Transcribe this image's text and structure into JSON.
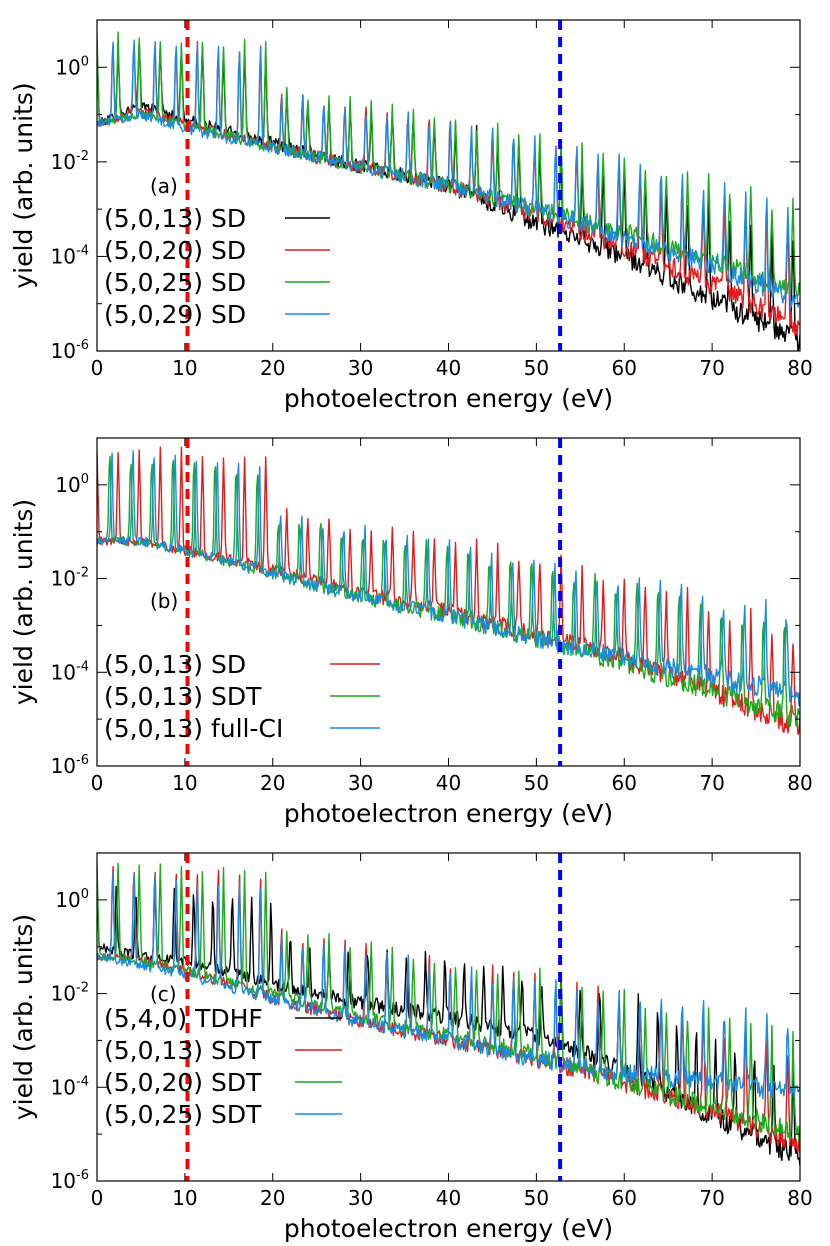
{
  "chart_data": [
    {
      "type": "line",
      "panel_label": "(a)",
      "xlabel": "photoelectron energy (eV)",
      "ylabel": "yield (arb. units)",
      "xlim": [
        0,
        80
      ],
      "ylim_log10": [
        -6,
        1
      ],
      "y_scale": "log",
      "x_ticks": [
        "0",
        "10",
        "20",
        "30",
        "40",
        "50",
        "60",
        "70",
        "80"
      ],
      "y_ticks": [
        {
          "base": "10",
          "exp": "0"
        },
        {
          "base": "10",
          "exp": "-2"
        },
        {
          "base": "10",
          "exp": "-4"
        },
        {
          "base": "10",
          "exp": "-6"
        }
      ],
      "vertical_lines": [
        {
          "x": 10.3,
          "color": "#ff0000"
        },
        {
          "x": 52.7,
          "color": "#0000ff"
        }
      ],
      "legend_position": "bottom-left",
      "series": [
        {
          "name": "(5,0,13) SD",
          "color": "#000000",
          "x": [
            0,
            5,
            10,
            20,
            30,
            40,
            50,
            60,
            70,
            80
          ],
          "y_log10_baseline": [
            -1.2,
            -0.8,
            -1.1,
            -1.6,
            -2.1,
            -2.5,
            -3.3,
            -4.0,
            -4.9,
            -5.8
          ],
          "peak_log10": 0.5,
          "peak_spacing_ev": 2.4
        },
        {
          "name": "(5,0,20) SD",
          "color": "#e41a1c",
          "x": [
            0,
            5,
            10,
            20,
            30,
            40,
            50,
            60,
            70,
            80
          ],
          "y_log10_baseline": [
            -1.2,
            -0.9,
            -1.2,
            -1.7,
            -2.1,
            -2.5,
            -3.1,
            -3.8,
            -4.6,
            -5.5
          ],
          "peak_log10": 0.6,
          "peak_spacing_ev": 2.4
        },
        {
          "name": "(5,0,25) SD",
          "color": "#1aaa1a",
          "x": [
            0,
            5,
            10,
            20,
            30,
            40,
            50,
            60,
            70,
            80
          ],
          "y_log10_baseline": [
            -1.2,
            -1.0,
            -1.2,
            -1.7,
            -2.1,
            -2.5,
            -3.0,
            -3.5,
            -4.1,
            -4.8
          ],
          "peak_log10": 0.7,
          "peak_spacing_ev": 2.4
        },
        {
          "name": "(5,0,29) SD",
          "color": "#1a8ce0",
          "x": [
            0,
            5,
            10,
            20,
            30,
            40,
            50,
            60,
            70,
            80
          ],
          "y_log10_baseline": [
            -1.2,
            -1.0,
            -1.3,
            -1.7,
            -2.1,
            -2.5,
            -3.0,
            -3.6,
            -4.2,
            -4.9
          ],
          "peak_log10": 0.6,
          "peak_spacing_ev": 2.4
        }
      ]
    },
    {
      "type": "line",
      "panel_label": "(b)",
      "xlabel": "photoelectron energy (eV)",
      "ylabel": "yield (arb. units)",
      "xlim": [
        0,
        80
      ],
      "ylim_log10": [
        -6,
        1
      ],
      "y_scale": "log",
      "x_ticks": [
        "0",
        "10",
        "20",
        "30",
        "40",
        "50",
        "60",
        "70",
        "80"
      ],
      "y_ticks": [
        {
          "base": "10",
          "exp": "0"
        },
        {
          "base": "10",
          "exp": "-2"
        },
        {
          "base": "10",
          "exp": "-4"
        },
        {
          "base": "10",
          "exp": "-6"
        }
      ],
      "vertical_lines": [
        {
          "x": 10.3,
          "color": "#ff0000"
        },
        {
          "x": 52.7,
          "color": "#0000ff"
        }
      ],
      "legend_position": "bottom-left",
      "series": [
        {
          "name": "(5,0,13) SD",
          "color": "#e41a1c",
          "x": [
            0,
            5,
            10,
            20,
            30,
            40,
            50,
            60,
            70,
            80
          ],
          "y_log10_baseline": [
            -1.2,
            -1.2,
            -1.4,
            -1.8,
            -2.3,
            -2.7,
            -3.2,
            -3.7,
            -4.4,
            -5.2
          ],
          "peak_log10": 0.8,
          "peak_spacing_ev": 2.4
        },
        {
          "name": "(5,0,13) SDT",
          "color": "#1aaa1a",
          "x": [
            0,
            5,
            10,
            20,
            30,
            40,
            50,
            60,
            70,
            80
          ],
          "y_log10_baseline": [
            -1.2,
            -1.2,
            -1.4,
            -1.9,
            -2.4,
            -2.8,
            -3.3,
            -3.8,
            -4.4,
            -5.0
          ],
          "peak_log10": 0.7,
          "peak_spacing_ev": 2.4
        },
        {
          "name": "(5,0,13) full-CI",
          "color": "#1a8ce0",
          "x": [
            0,
            5,
            10,
            20,
            30,
            40,
            50,
            60,
            70,
            80
          ],
          "y_log10_baseline": [
            -1.2,
            -1.2,
            -1.4,
            -1.9,
            -2.4,
            -2.8,
            -3.3,
            -3.7,
            -4.1,
            -4.5
          ],
          "peak_log10": 0.8,
          "peak_spacing_ev": 2.4
        }
      ]
    },
    {
      "type": "line",
      "panel_label": "(c)",
      "xlabel": "photoelectron energy (eV)",
      "ylabel": "yield (arb. units)",
      "xlim": [
        0,
        80
      ],
      "ylim_log10": [
        -6,
        1
      ],
      "y_scale": "log",
      "x_ticks": [
        "0",
        "10",
        "20",
        "30",
        "40",
        "50",
        "60",
        "70",
        "80"
      ],
      "y_ticks": [
        {
          "base": "10",
          "exp": "0"
        },
        {
          "base": "10",
          "exp": "-2"
        },
        {
          "base": "10",
          "exp": "-4"
        },
        {
          "base": "10",
          "exp": "-6"
        }
      ],
      "vertical_lines": [
        {
          "x": 10.3,
          "color": "#ff0000"
        },
        {
          "x": 52.7,
          "color": "#0000ff"
        }
      ],
      "legend_position": "bottom-left",
      "series": [
        {
          "name": "(5,4,0) TDHF",
          "color": "#000000",
          "x": [
            0,
            5,
            10,
            20,
            30,
            40,
            50,
            60,
            70,
            80
          ],
          "y_log10_baseline": [
            -1.0,
            -1.2,
            -1.3,
            -1.8,
            -2.2,
            -2.5,
            -2.9,
            -3.6,
            -4.6,
            -5.5
          ],
          "peak_log10": 0.3,
          "peak_spacing_ev": 2.2
        },
        {
          "name": "(5,0,13) SDT",
          "color": "#e41a1c",
          "x": [
            0,
            5,
            10,
            20,
            30,
            40,
            50,
            60,
            70,
            80
          ],
          "y_log10_baseline": [
            -1.2,
            -1.3,
            -1.5,
            -2.1,
            -2.6,
            -3.0,
            -3.4,
            -3.9,
            -4.5,
            -5.2
          ],
          "peak_log10": 0.8,
          "peak_spacing_ev": 2.4
        },
        {
          "name": "(5,0,20) SDT",
          "color": "#1aaa1a",
          "x": [
            0,
            5,
            10,
            20,
            30,
            40,
            50,
            60,
            70,
            80
          ],
          "y_log10_baseline": [
            -1.2,
            -1.3,
            -1.5,
            -2.0,
            -2.5,
            -2.9,
            -3.3,
            -3.9,
            -4.4,
            -5.0
          ],
          "peak_log10": 0.8,
          "peak_spacing_ev": 2.4
        },
        {
          "name": "(5,0,25) SDT",
          "color": "#1a8ce0",
          "x": [
            0,
            5,
            10,
            20,
            30,
            40,
            50,
            60,
            70,
            80
          ],
          "y_log10_baseline": [
            -1.2,
            -1.4,
            -1.6,
            -2.1,
            -2.6,
            -3.0,
            -3.4,
            -3.7,
            -3.9,
            -4.1
          ],
          "peak_log10": 0.6,
          "peak_spacing_ev": 2.4
        }
      ]
    }
  ]
}
